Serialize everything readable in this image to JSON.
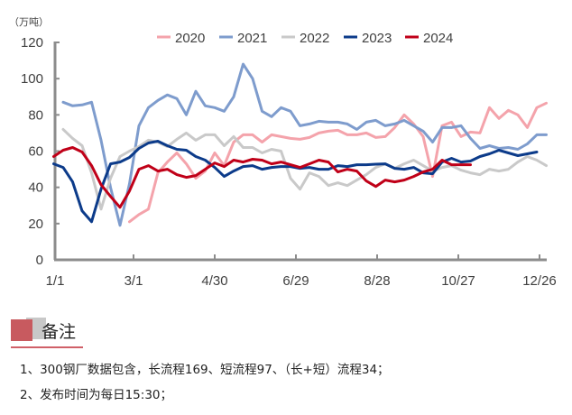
{
  "chart_data": {
    "type": "line",
    "unit_label": "（万吨）",
    "ylim": [
      0,
      120
    ],
    "yticks": [
      0,
      20,
      40,
      60,
      80,
      100,
      120
    ],
    "xtick_labels": [
      "1/1",
      "3/1",
      "4/30",
      "6/29",
      "8/28",
      "10/27",
      "12/26"
    ],
    "grid": false,
    "legend_position": "top",
    "x": [
      "1/1",
      "1/8",
      "1/15",
      "1/22",
      "1/29",
      "2/5",
      "2/12",
      "2/19",
      "2/26",
      "3/5",
      "3/12",
      "3/19",
      "3/26",
      "4/2",
      "4/9",
      "4/16",
      "4/23",
      "4/30",
      "5/7",
      "5/14",
      "5/21",
      "5/28",
      "6/4",
      "6/11",
      "6/18",
      "6/25",
      "7/2",
      "7/9",
      "7/16",
      "7/23",
      "7/30",
      "8/6",
      "8/13",
      "8/20",
      "8/27",
      "9/3",
      "9/10",
      "9/17",
      "9/24",
      "10/1",
      "10/8",
      "10/15",
      "10/22",
      "10/29",
      "11/5",
      "11/12",
      "11/19",
      "11/26",
      "12/3",
      "12/10",
      "12/17",
      "12/24",
      "12/31"
    ],
    "series": [
      {
        "name": "2020",
        "color": "#f4a3ab",
        "values": [
          null,
          null,
          null,
          null,
          null,
          null,
          null,
          null,
          21,
          25,
          28,
          48,
          54,
          59,
          53,
          45,
          49,
          59,
          52,
          65,
          69,
          69,
          65,
          69,
          68,
          67,
          66.5,
          67.5,
          70,
          71,
          71.5,
          69,
          69,
          70,
          67.5,
          68,
          73,
          80,
          75,
          68,
          46,
          74,
          76,
          68,
          70.5,
          70,
          84,
          78,
          82.5,
          80,
          73,
          84,
          86.5
        ]
      },
      {
        "name": "2021",
        "color": "#7e9ccd",
        "values": [
          null,
          87,
          85,
          85.5,
          87,
          66,
          40,
          19,
          42,
          74,
          84,
          88,
          91,
          89,
          80,
          93,
          85,
          84,
          82,
          90,
          108,
          100,
          82,
          79,
          84,
          82,
          74,
          75,
          76.5,
          76,
          76,
          75,
          72,
          76,
          77,
          74,
          75,
          77,
          74,
          71,
          65,
          73,
          73,
          74,
          67,
          61.5,
          63,
          61.5,
          62,
          61,
          64,
          69,
          69
        ]
      },
      {
        "name": "2022",
        "color": "#c9c9c9",
        "values": [
          null,
          72,
          67,
          63,
          48,
          28,
          45,
          57,
          60,
          62.5,
          66,
          65,
          62.5,
          66.5,
          70,
          66,
          69,
          69,
          63,
          68,
          62,
          62,
          59,
          61,
          60,
          45,
          39,
          48,
          46,
          41,
          42.5,
          41,
          44,
          47,
          51,
          53,
          50.5,
          53,
          55,
          52,
          49,
          51,
          52,
          49.5,
          48,
          47,
          50,
          49,
          50,
          54,
          57,
          55,
          52
        ]
      },
      {
        "name": "2023",
        "color": "#0c3b8a",
        "values": [
          53,
          51,
          43,
          27,
          21,
          39,
          53,
          54,
          56.5,
          61.5,
          64.5,
          65.5,
          63,
          61,
          60.5,
          57,
          55,
          51,
          46,
          49,
          51.5,
          52,
          50,
          51,
          51.5,
          51.5,
          50.5,
          51,
          50,
          50,
          52,
          51.5,
          52.5,
          52.5,
          52.8,
          53,
          50.5,
          50,
          51,
          48,
          47.5,
          54,
          56,
          54,
          54.5,
          57,
          58.5,
          60.5,
          59,
          57.5,
          58.5,
          59.5,
          null
        ]
      },
      {
        "name": "2024",
        "color": "#c00018",
        "values": [
          57,
          60.5,
          62,
          59.5,
          52,
          41.5,
          35,
          29,
          38,
          50,
          52,
          49,
          50,
          47,
          45.5,
          46.5,
          50,
          53.5,
          51.5,
          55,
          54,
          55.5,
          55,
          53,
          54,
          52.5,
          51,
          53,
          55,
          54,
          48.5,
          50,
          49,
          43.5,
          40.5,
          44,
          43,
          44,
          46,
          48.5,
          50,
          55,
          52.5,
          52.5,
          52.5,
          null,
          null,
          null,
          null,
          null,
          null,
          null,
          null
        ]
      }
    ]
  },
  "notes": {
    "title": "备注",
    "lines": [
      "1、300钢厂数据包含，长流程169、短流程97、（长+短）流程34；",
      "2、发布时间为每日15:30；"
    ]
  }
}
